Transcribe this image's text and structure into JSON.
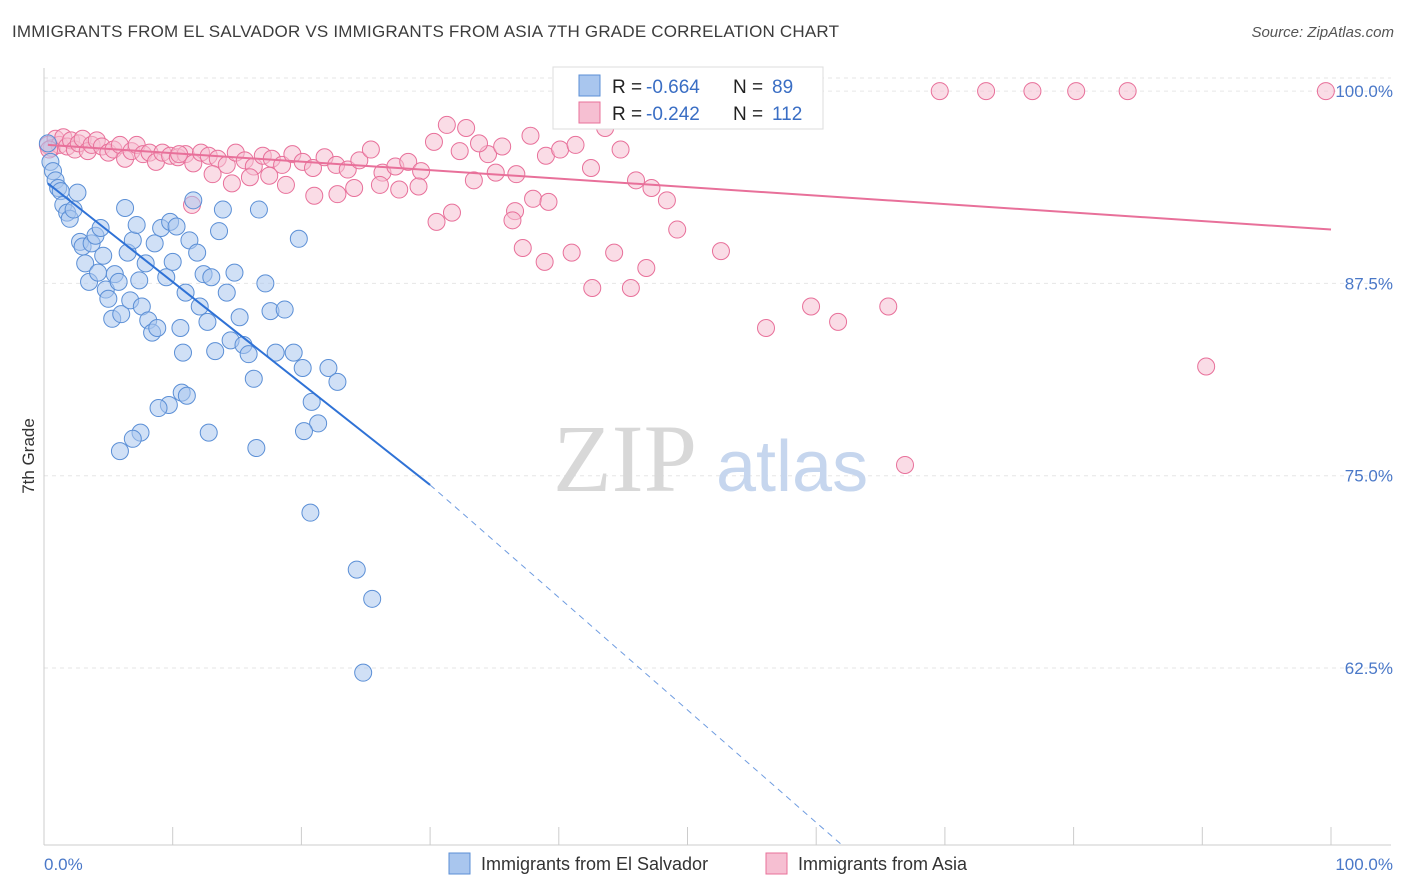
{
  "title": "IMMIGRANTS FROM EL SALVADOR VS IMMIGRANTS FROM ASIA 7TH GRADE CORRELATION CHART",
  "source": "Source: ZipAtlas.com",
  "watermark": {
    "part1": "ZIP",
    "part2": "atlas"
  },
  "colors": {
    "blue": "#5b8fd6",
    "blue_fill": "#a9c6ee",
    "pink": "#e8709a",
    "pink_fill": "#f6bfd2",
    "tick": "#4a78c8"
  },
  "stats": {
    "blue": {
      "r_label": "R =",
      "r_value": "-0.664",
      "n_label": "N =",
      "n_value": "89"
    },
    "pink": {
      "r_label": "R =",
      "r_value": "-0.242",
      "n_label": "N =",
      "n_value": "112"
    }
  },
  "legend": {
    "blue_label": "Immigrants from El Salvador",
    "pink_label": "Immigrants from Asia"
  },
  "chart_data": {
    "type": "scatter",
    "title": "IMMIGRANTS FROM EL SALVADOR VS IMMIGRANTS FROM ASIA 7TH GRADE CORRELATION CHART",
    "xlabel": "",
    "ylabel": "7th Grade",
    "xlim": [
      0,
      100
    ],
    "ylim": [
      51.0,
      101.5
    ],
    "x_tick_labels": [
      "0.0%",
      "100.0%"
    ],
    "y_ticks": [
      62.5,
      75.0,
      87.5,
      100.0
    ],
    "y_tick_labels": [
      "62.5%",
      "75.0%",
      "87.5%",
      "100.0%"
    ],
    "grid": true,
    "legend_position": "bottom",
    "series": [
      {
        "name": "Immigrants from El Salvador",
        "color": "#5b8fd6",
        "trend": {
          "x1": 0.3,
          "y1": 94.0,
          "x2": 30.0,
          "y2": 74.4,
          "dash_to_x": 62.0,
          "dash_to_y": 51.0
        },
        "points": [
          [
            0.3,
            96.6
          ],
          [
            0.5,
            95.4
          ],
          [
            0.7,
            94.8
          ],
          [
            0.9,
            94.2
          ],
          [
            1.1,
            93.7
          ],
          [
            1.3,
            93.5
          ],
          [
            1.5,
            92.6
          ],
          [
            1.8,
            92.1
          ],
          [
            2.0,
            91.7
          ],
          [
            2.3,
            92.3
          ],
          [
            2.6,
            93.4
          ],
          [
            2.8,
            90.2
          ],
          [
            3.0,
            89.9
          ],
          [
            3.2,
            88.8
          ],
          [
            3.5,
            87.6
          ],
          [
            3.7,
            90.1
          ],
          [
            4.0,
            90.6
          ],
          [
            4.2,
            88.2
          ],
          [
            4.4,
            91.1
          ],
          [
            4.6,
            89.3
          ],
          [
            4.8,
            87.1
          ],
          [
            5.0,
            86.5
          ],
          [
            5.3,
            85.2
          ],
          [
            5.5,
            88.1
          ],
          [
            5.8,
            87.6
          ],
          [
            6.0,
            85.5
          ],
          [
            6.3,
            92.4
          ],
          [
            6.5,
            89.5
          ],
          [
            6.7,
            86.4
          ],
          [
            6.9,
            90.3
          ],
          [
            7.2,
            91.3
          ],
          [
            7.4,
            87.7
          ],
          [
            7.6,
            86.0
          ],
          [
            7.9,
            88.8
          ],
          [
            8.1,
            85.1
          ],
          [
            8.4,
            84.3
          ],
          [
            8.6,
            90.1
          ],
          [
            8.8,
            84.6
          ],
          [
            9.1,
            91.1
          ],
          [
            9.5,
            87.9
          ],
          [
            9.8,
            91.5
          ],
          [
            10.0,
            88.9
          ],
          [
            10.3,
            91.2
          ],
          [
            10.6,
            84.6
          ],
          [
            10.8,
            83.0
          ],
          [
            11.0,
            86.9
          ],
          [
            11.3,
            90.3
          ],
          [
            11.6,
            92.9
          ],
          [
            11.9,
            89.5
          ],
          [
            12.1,
            86.0
          ],
          [
            12.4,
            88.1
          ],
          [
            12.7,
            85.0
          ],
          [
            13.0,
            87.9
          ],
          [
            13.3,
            83.1
          ],
          [
            13.6,
            90.9
          ],
          [
            13.9,
            92.3
          ],
          [
            14.2,
            86.9
          ],
          [
            14.5,
            83.8
          ],
          [
            14.8,
            88.2
          ],
          [
            15.2,
            85.3
          ],
          [
            15.5,
            83.5
          ],
          [
            15.9,
            82.9
          ],
          [
            16.3,
            81.3
          ],
          [
            16.7,
            92.3
          ],
          [
            17.2,
            87.5
          ],
          [
            17.6,
            85.7
          ],
          [
            18.0,
            83.0
          ],
          [
            18.7,
            85.8
          ],
          [
            19.4,
            83.0
          ],
          [
            19.8,
            90.4
          ],
          [
            20.1,
            82.0
          ],
          [
            20.8,
            79.8
          ],
          [
            21.3,
            78.4
          ],
          [
            22.1,
            82.0
          ],
          [
            22.8,
            81.1
          ],
          [
            12.8,
            77.8
          ],
          [
            10.7,
            80.4
          ],
          [
            11.1,
            80.2
          ],
          [
            9.7,
            79.6
          ],
          [
            8.9,
            79.4
          ],
          [
            7.5,
            77.8
          ],
          [
            6.9,
            77.4
          ],
          [
            5.9,
            76.6
          ],
          [
            20.2,
            77.9
          ],
          [
            16.5,
            76.8
          ],
          [
            20.7,
            72.6
          ],
          [
            24.3,
            68.9
          ],
          [
            24.8,
            62.2
          ],
          [
            25.5,
            67.0
          ]
        ]
      },
      {
        "name": "Immigrants from Asia",
        "color": "#e8709a",
        "trend": {
          "x1": 0.3,
          "y1": 96.5,
          "x2": 100.0,
          "y2": 91.0
        },
        "points": [
          [
            0.3,
            96.5
          ],
          [
            0.6,
            96.3
          ],
          [
            0.9,
            96.9
          ],
          [
            1.2,
            96.5
          ],
          [
            1.5,
            97.0
          ],
          [
            1.8,
            96.4
          ],
          [
            2.1,
            96.8
          ],
          [
            2.4,
            96.2
          ],
          [
            2.7,
            96.6
          ],
          [
            3.0,
            96.9
          ],
          [
            3.4,
            96.1
          ],
          [
            3.7,
            96.5
          ],
          [
            4.1,
            96.8
          ],
          [
            4.5,
            96.4
          ],
          [
            5.0,
            96.0
          ],
          [
            5.4,
            96.2
          ],
          [
            5.9,
            96.5
          ],
          [
            6.3,
            95.6
          ],
          [
            6.8,
            96.1
          ],
          [
            7.2,
            96.5
          ],
          [
            7.7,
            95.9
          ],
          [
            8.2,
            96.0
          ],
          [
            8.7,
            95.4
          ],
          [
            9.2,
            96.0
          ],
          [
            9.8,
            95.8
          ],
          [
            10.4,
            95.7
          ],
          [
            11.0,
            95.9
          ],
          [
            11.6,
            95.3
          ],
          [
            12.2,
            96.0
          ],
          [
            12.8,
            95.8
          ],
          [
            13.5,
            95.6
          ],
          [
            14.2,
            95.2
          ],
          [
            14.9,
            96.0
          ],
          [
            15.6,
            95.5
          ],
          [
            16.3,
            95.1
          ],
          [
            17.0,
            95.8
          ],
          [
            17.7,
            95.6
          ],
          [
            18.5,
            95.2
          ],
          [
            19.3,
            95.9
          ],
          [
            20.1,
            95.4
          ],
          [
            20.9,
            95.0
          ],
          [
            21.8,
            95.7
          ],
          [
            22.7,
            95.2
          ],
          [
            23.6,
            94.9
          ],
          [
            24.5,
            95.5
          ],
          [
            25.4,
            96.2
          ],
          [
            26.3,
            94.7
          ],
          [
            27.3,
            95.1
          ],
          [
            28.3,
            95.4
          ],
          [
            29.3,
            94.8
          ],
          [
            30.3,
            96.7
          ],
          [
            31.3,
            97.8
          ],
          [
            32.3,
            96.1
          ],
          [
            33.4,
            94.2
          ],
          [
            34.5,
            95.9
          ],
          [
            35.6,
            96.4
          ],
          [
            36.7,
            94.6
          ],
          [
            37.8,
            97.1
          ],
          [
            39.0,
            95.8
          ],
          [
            40.1,
            96.2
          ],
          [
            41.3,
            96.5
          ],
          [
            42.5,
            95.0
          ],
          [
            43.6,
            97.6
          ],
          [
            44.8,
            96.2
          ],
          [
            46.0,
            94.2
          ],
          [
            47.2,
            93.7
          ],
          [
            48.4,
            92.9
          ],
          [
            32.8,
            97.6
          ],
          [
            33.8,
            96.6
          ],
          [
            35.1,
            94.7
          ],
          [
            36.6,
            92.2
          ],
          [
            38.0,
            93.0
          ],
          [
            39.2,
            92.8
          ],
          [
            29.1,
            93.8
          ],
          [
            30.5,
            91.5
          ],
          [
            31.7,
            92.1
          ],
          [
            27.6,
            93.6
          ],
          [
            26.1,
            93.9
          ],
          [
            24.1,
            93.7
          ],
          [
            22.8,
            93.3
          ],
          [
            21.0,
            93.2
          ],
          [
            18.8,
            93.9
          ],
          [
            17.5,
            94.5
          ],
          [
            16.0,
            94.4
          ],
          [
            14.6,
            94.0
          ],
          [
            13.1,
            94.6
          ],
          [
            11.5,
            92.6
          ],
          [
            10.5,
            95.9
          ],
          [
            36.4,
            91.6
          ],
          [
            37.2,
            89.8
          ],
          [
            38.9,
            88.9
          ],
          [
            41.0,
            89.5
          ],
          [
            42.6,
            87.2
          ],
          [
            44.3,
            89.5
          ],
          [
            45.6,
            87.2
          ],
          [
            46.8,
            88.5
          ],
          [
            49.2,
            91.0
          ],
          [
            52.6,
            89.6
          ],
          [
            56.1,
            84.6
          ],
          [
            59.6,
            86.0
          ],
          [
            61.7,
            85.0
          ],
          [
            65.6,
            86.0
          ],
          [
            66.9,
            75.7
          ],
          [
            73.2,
            100.0
          ],
          [
            76.8,
            100.0
          ],
          [
            80.2,
            100.0
          ],
          [
            84.2,
            100.0
          ],
          [
            90.3,
            82.1
          ],
          [
            99.6,
            100.0
          ],
          [
            69.6,
            100.0
          ],
          [
            0.4,
            96.2
          ],
          [
            46.7,
            100.0
          ]
        ]
      }
    ]
  }
}
